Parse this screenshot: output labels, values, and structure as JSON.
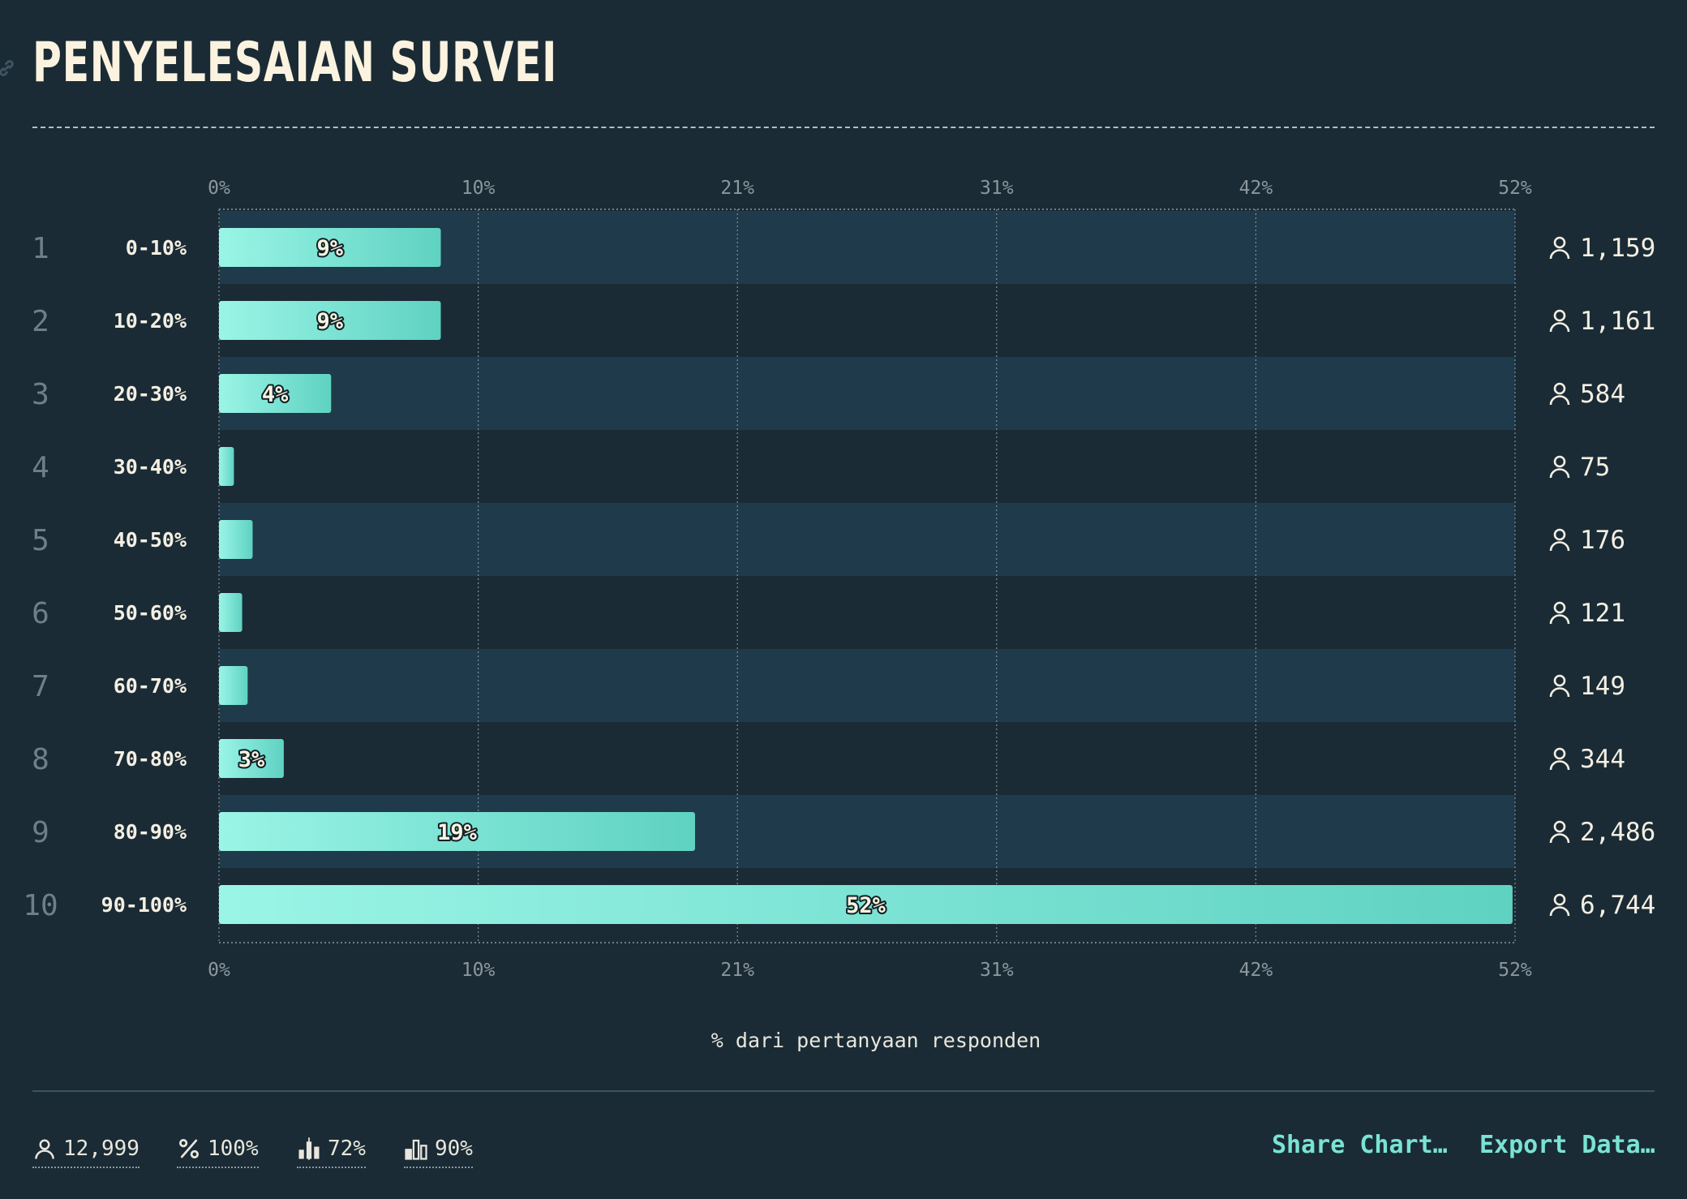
{
  "title": "PENYELESAIAN SURVEI",
  "chart_data": {
    "type": "bar",
    "orientation": "horizontal",
    "title": "PENYELESAIAN SURVEI",
    "xlabel": "% dari pertanyaan responden",
    "xlim": [
      0,
      52
    ],
    "x_ticks": [
      "0%",
      "10%",
      "21%",
      "31%",
      "42%",
      "52%"
    ],
    "rank_labels": [
      "1",
      "2",
      "3",
      "4",
      "5",
      "6",
      "7",
      "8",
      "9",
      "10"
    ],
    "categories": [
      "0-10%",
      "10-20%",
      "20-30%",
      "30-40%",
      "40-50%",
      "50-60%",
      "60-70%",
      "70-80%",
      "80-90%",
      "90-100%"
    ],
    "values": [
      8.9,
      8.9,
      4.5,
      0.6,
      1.35,
      0.93,
      1.15,
      2.6,
      19.1,
      51.9
    ],
    "value_labels": [
      "9%",
      "9%",
      "4%",
      "",
      "",
      "",
      "",
      "3%",
      "19%",
      "52%"
    ],
    "counts": [
      "1,159",
      "1,161",
      "584",
      "75",
      "176",
      "121",
      "149",
      "344",
      "2,486",
      "6,744"
    ],
    "grid": true,
    "colors": {
      "bar_start": "#9af5e6",
      "bar_end": "#5fd2c2",
      "band": "#1f3a4a",
      "background": "#1a2b35",
      "accent": "#7ae3d3"
    }
  },
  "footer": {
    "stats": [
      {
        "icon": "person-icon",
        "value": "12,999"
      },
      {
        "icon": "percent-icon",
        "value": "100%"
      },
      {
        "icon": "median-bars-icon",
        "value": "72%"
      },
      {
        "icon": "bars-icon",
        "value": "90%"
      }
    ],
    "share_label": "Share Chart…",
    "export_label": "Export Data…"
  }
}
